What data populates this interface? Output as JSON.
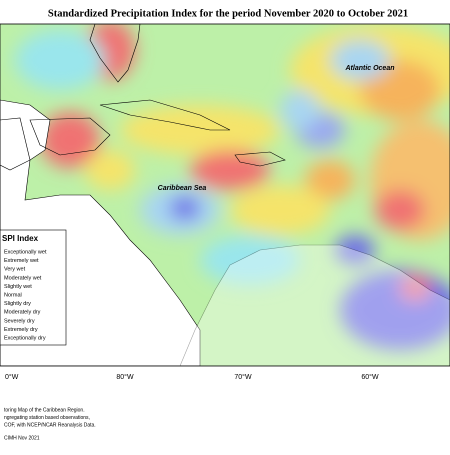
{
  "header": {
    "title": "Standardized Precipitation Index for the period November 2020 to October 2021"
  },
  "map": {
    "labels": [
      "Atlantic Ocean",
      "Caribbean Sea"
    ],
    "longitudes": [
      "0°W",
      "80°W",
      "70°W",
      "60°W"
    ]
  },
  "legend": {
    "title": "SPI Index",
    "items": [
      "Exceptionally wet",
      "Extremely wet",
      "Very wet",
      "Moderately wet",
      "Slightly wet",
      "Normal",
      "Slightly dry",
      "Moderately dry",
      "Severely dry",
      "Extremely dry",
      "Exceptionally dry"
    ]
  },
  "footer": {
    "lines": [
      "toring Map of the Caribbean Region.",
      "ngregating station based observations,",
      "COF, with NCEP/NCAR Reanalysis Data."
    ],
    "credit": "CIMH Nov 2021"
  }
}
